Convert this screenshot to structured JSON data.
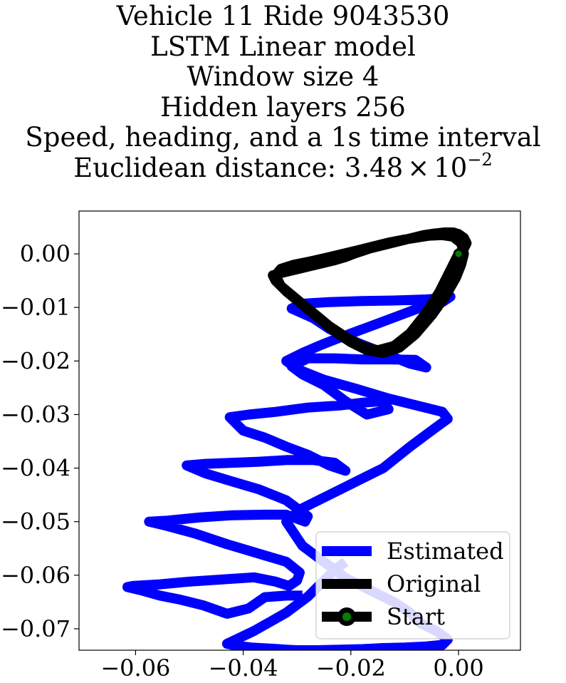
{
  "title_lines": [
    "Vehicle 11 Ride 9043530",
    "LSTM Linear model",
    "Window size 4",
    "Hidden layers 256",
    "Speed, heading, and a 1s time interval"
  ],
  "distance": {
    "prefix": "Euclidean distance: 3.48",
    "times": "×",
    "base": "10",
    "exponent": "−2"
  },
  "chart_data": {
    "type": "line",
    "xlim": [
      -0.0705,
      0.0115
    ],
    "ylim": [
      -0.074,
      0.008
    ],
    "x_ticks": [
      -0.06,
      -0.04,
      -0.02,
      0.0
    ],
    "x_tick_labels": [
      "−0.06",
      "−0.04",
      "−0.02",
      "0.00"
    ],
    "y_ticks": [
      0.0,
      -0.01,
      -0.02,
      -0.03,
      -0.04,
      -0.05,
      -0.06,
      -0.07
    ],
    "y_tick_labels": [
      "0.00",
      "−0.01",
      "−0.02",
      "−0.03",
      "−0.04",
      "−0.05",
      "−0.06",
      "−0.07"
    ],
    "grid": false,
    "legend_position": "lower-right",
    "series": [
      {
        "name": "Estimated",
        "color": "#0000ff",
        "x": [
          -0.029,
          -0.032,
          -0.036,
          -0.039,
          -0.043,
          -0.0475,
          -0.052,
          -0.0555,
          -0.059,
          -0.0615,
          -0.0605,
          -0.0555,
          -0.05,
          -0.044,
          -0.038,
          -0.034,
          -0.0315,
          -0.03,
          -0.0295,
          -0.032,
          -0.037,
          -0.043,
          -0.049,
          -0.0545,
          -0.0575,
          -0.054,
          -0.048,
          -0.042,
          -0.036,
          -0.032,
          -0.0285,
          -0.028,
          -0.032,
          -0.037,
          -0.042,
          -0.047,
          -0.0505,
          -0.047,
          -0.042,
          -0.037,
          -0.032,
          -0.027,
          -0.023,
          -0.021,
          -0.024,
          -0.028,
          -0.032,
          -0.036,
          -0.04,
          -0.0425,
          -0.039,
          -0.034,
          -0.028,
          -0.022,
          -0.018,
          -0.014,
          -0.013,
          -0.017,
          -0.021,
          -0.025,
          -0.029,
          -0.031,
          -0.028,
          -0.023,
          -0.018,
          -0.013,
          -0.008,
          -0.006,
          -0.009,
          -0.014,
          -0.019,
          -0.024,
          -0.027,
          -0.031,
          -0.029,
          -0.024,
          -0.018,
          -0.012,
          -0.006,
          -0.002,
          -0.0015,
          -0.003,
          -0.007,
          -0.011,
          -0.015,
          -0.019,
          -0.023,
          -0.026,
          -0.029,
          -0.032,
          -0.03,
          -0.025,
          -0.019,
          -0.013,
          -0.007,
          -0.003,
          -0.002,
          -0.005,
          -0.009,
          -0.014,
          -0.021,
          -0.029,
          -0.032,
          -0.029,
          -0.025,
          -0.021,
          -0.016,
          -0.012,
          -0.009,
          -0.007,
          -0.004,
          -0.002,
          -0.003,
          -0.006,
          -0.01,
          -0.014,
          -0.018,
          -0.022,
          -0.0265,
          -0.03,
          -0.032,
          -0.035,
          -0.0385,
          -0.041,
          -0.043,
          -0.038,
          -0.032,
          -0.028,
          -0.025,
          -0.023,
          -0.021
        ],
        "y": [
          -0.0638,
          -0.0638,
          -0.0641,
          -0.0662,
          -0.0672,
          -0.0656,
          -0.0645,
          -0.0638,
          -0.0628,
          -0.0622,
          -0.062,
          -0.0617,
          -0.0612,
          -0.0608,
          -0.0604,
          -0.0612,
          -0.062,
          -0.061,
          -0.0595,
          -0.0575,
          -0.056,
          -0.0542,
          -0.0522,
          -0.0507,
          -0.05,
          -0.0498,
          -0.0492,
          -0.0488,
          -0.0487,
          -0.0487,
          -0.05,
          -0.049,
          -0.046,
          -0.044,
          -0.0425,
          -0.041,
          -0.0395,
          -0.0392,
          -0.039,
          -0.0388,
          -0.0385,
          -0.0385,
          -0.039,
          -0.0405,
          -0.0395,
          -0.0375,
          -0.036,
          -0.0343,
          -0.033,
          -0.0305,
          -0.03,
          -0.0295,
          -0.0287,
          -0.0283,
          -0.0278,
          -0.0275,
          -0.029,
          -0.03,
          -0.0275,
          -0.0245,
          -0.0225,
          -0.021,
          -0.0195,
          -0.0195,
          -0.0197,
          -0.0197,
          -0.0198,
          -0.0212,
          -0.0205,
          -0.0185,
          -0.0165,
          -0.014,
          -0.012,
          -0.0102,
          -0.0093,
          -0.009,
          -0.0088,
          -0.0087,
          -0.0085,
          -0.0082,
          -0.008,
          -0.009,
          -0.01,
          -0.0115,
          -0.013,
          -0.0145,
          -0.016,
          -0.0172,
          -0.0185,
          -0.02,
          -0.0215,
          -0.0235,
          -0.0252,
          -0.027,
          -0.0285,
          -0.0295,
          -0.0308,
          -0.033,
          -0.036,
          -0.04,
          -0.0435,
          -0.0475,
          -0.05,
          -0.0545,
          -0.0575,
          -0.0605,
          -0.063,
          -0.065,
          -0.067,
          -0.069,
          -0.0705,
          -0.072,
          -0.073,
          -0.0733,
          -0.0735,
          -0.0736,
          -0.0738,
          -0.0739,
          -0.074,
          -0.074,
          -0.0739,
          -0.0737,
          -0.0735,
          -0.0732,
          -0.0728,
          -0.0704,
          -0.067,
          -0.064,
          -0.061,
          -0.059,
          -0.0575
        ]
      },
      {
        "name": "Original",
        "color": "#000000",
        "x": [
          0.0,
          0.001,
          0.0015,
          0.001,
          0.0,
          -0.001,
          -0.0025,
          -0.0045,
          -0.0065,
          -0.0085,
          -0.0105,
          -0.0125,
          -0.0145,
          -0.0165,
          -0.018,
          -0.0195,
          -0.021,
          -0.023,
          -0.0255,
          -0.028,
          -0.0305,
          -0.033,
          -0.0345,
          -0.034,
          -0.032,
          -0.029,
          -0.026,
          -0.023,
          -0.02,
          -0.017,
          -0.014,
          -0.011,
          -0.008,
          -0.005,
          -0.0025,
          -0.0005,
          0.0005,
          0.001,
          0.0005,
          -0.001,
          -0.003,
          -0.0055,
          -0.008,
          -0.0105,
          -0.013,
          -0.015,
          -0.017,
          -0.019,
          -0.0215,
          -0.0245,
          -0.0275,
          -0.0305,
          -0.033,
          -0.034,
          -0.033,
          -0.03,
          -0.027,
          -0.024,
          -0.021,
          -0.018,
          -0.015,
          -0.012,
          -0.009,
          -0.006,
          -0.0035,
          -0.0015,
          0.0
        ],
        "y": [
          0.0,
          0.001,
          0.002,
          0.003,
          0.0037,
          0.004,
          0.004,
          0.0038,
          0.0035,
          0.003,
          0.0025,
          0.002,
          0.0015,
          0.001,
          0.0005,
          0.0,
          -0.0006,
          -0.0012,
          -0.0018,
          -0.0024,
          -0.003,
          -0.0036,
          -0.004,
          -0.005,
          -0.007,
          -0.0095,
          -0.012,
          -0.0145,
          -0.0165,
          -0.018,
          -0.0185,
          -0.0175,
          -0.015,
          -0.0115,
          -0.008,
          -0.0045,
          -0.002,
          0.0,
          0.002,
          0.0032,
          0.0035,
          0.0034,
          0.003,
          0.0026,
          0.0021,
          0.0016,
          0.0011,
          0.0006,
          0.0,
          -0.0007,
          -0.0014,
          -0.002,
          -0.0028,
          -0.004,
          -0.006,
          -0.0085,
          -0.011,
          -0.0135,
          -0.0155,
          -0.0172,
          -0.018,
          -0.0172,
          -0.0148,
          -0.011,
          -0.007,
          -0.003,
          0.0
        ]
      },
      {
        "name": "Start",
        "color": "#008000",
        "x": [
          0.0
        ],
        "y": [
          0.0
        ]
      }
    ]
  }
}
